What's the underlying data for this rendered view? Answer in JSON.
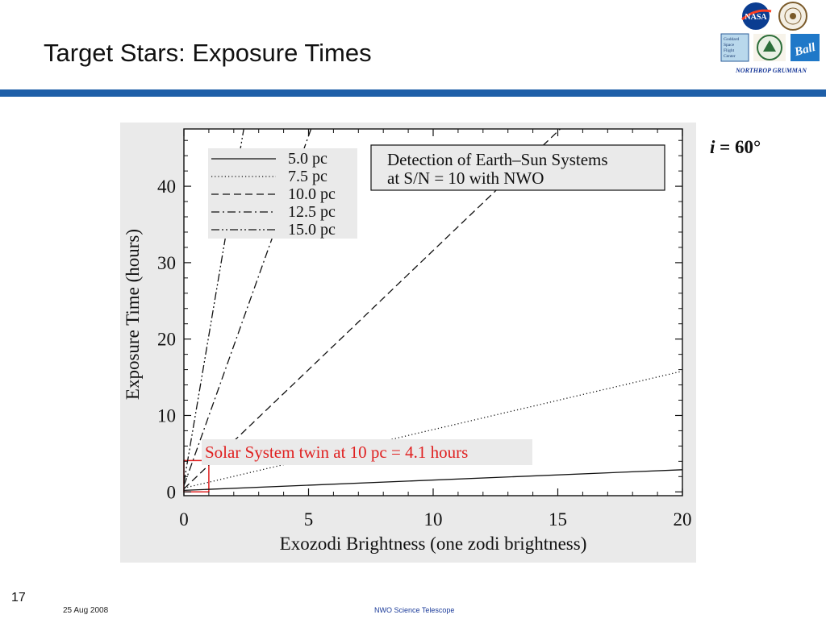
{
  "slide": {
    "title": "Target Stars: Exposure Times",
    "inclination_var": "i",
    "inclination_rest": " = 60°",
    "number": "17",
    "date": "25 Aug 2008",
    "footer_center": "NWO Science Telescope"
  },
  "logos": {
    "nasa": "NASA",
    "goddard_lines": [
      "Goddard",
      "Space",
      "Flight",
      "Center"
    ],
    "ball": "Ball",
    "northrop": "NORTHROP GRUMMAN"
  },
  "colors": {
    "accent": "#1f5fa8",
    "highlight": "#e02020"
  },
  "chart_data": {
    "type": "line",
    "xlabel": "Exozodi Brightness (one zodi brightness)",
    "ylabel": "Exposure Time (hours)",
    "xlim": [
      0,
      20
    ],
    "ylim": [
      -0.5,
      47.5
    ],
    "xticks": [
      0,
      5,
      10,
      15,
      20
    ],
    "yticks": [
      0,
      10,
      20,
      30,
      40
    ],
    "annotation_box": [
      "Detection of Earth–Sun Systems",
      "at S/N = 10 with NWO"
    ],
    "highlight_text": "Solar System twin at 10 pc = 4.1 hours",
    "highlight_rect": {
      "x": [
        0,
        1
      ],
      "y": [
        0,
        4.1
      ]
    },
    "legend_position": "top-left",
    "series": [
      {
        "name": "5.0 pc",
        "dash": "solid",
        "x": [
          0,
          20
        ],
        "y": [
          0.2,
          2.9
        ]
      },
      {
        "name": "7.5 pc",
        "dash": "dotted",
        "x": [
          0,
          20
        ],
        "y": [
          0.5,
          15.8
        ]
      },
      {
        "name": "10.0 pc",
        "dash": "dashed",
        "x": [
          0,
          15.1
        ],
        "y": [
          0.4,
          47.5
        ]
      },
      {
        "name": "12.5 pc",
        "dash": "dashdot",
        "x": [
          0,
          5.1
        ],
        "y": [
          0.8,
          47.5
        ]
      },
      {
        "name": "15.0 pc",
        "dash": "dashdotdot",
        "x": [
          0,
          2.4
        ],
        "y": [
          1.2,
          47.5
        ]
      }
    ]
  }
}
